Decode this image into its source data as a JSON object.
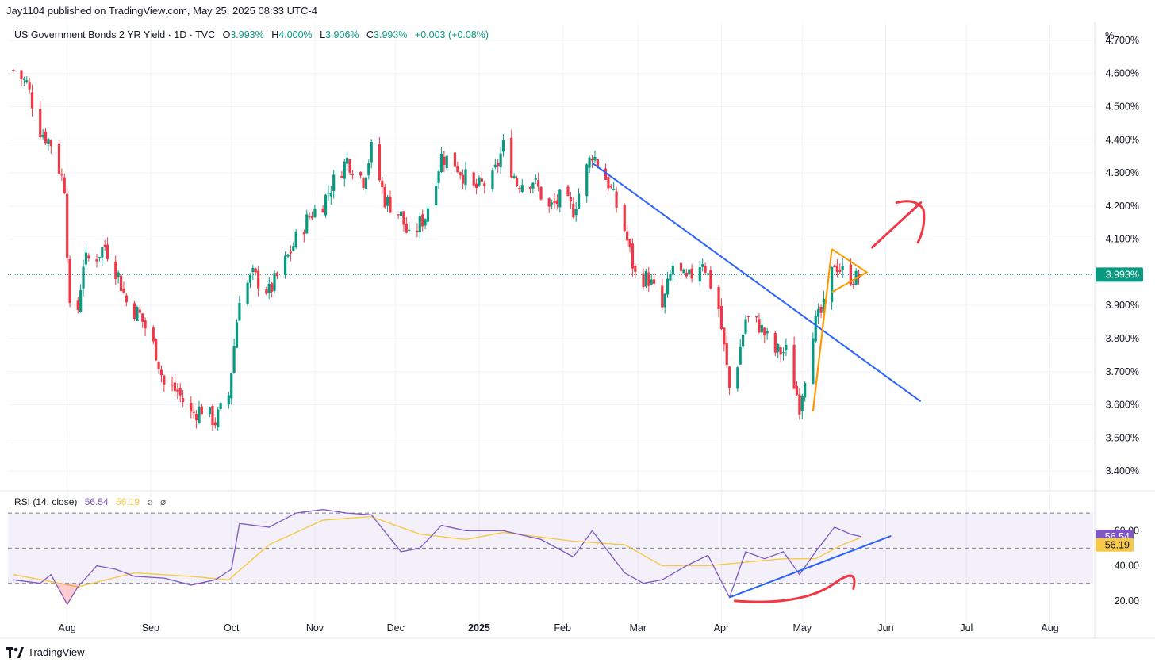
{
  "publisher": "Jay1104 published on TradingView.com, May 25, 2025 08:33 UTC-4",
  "legend": {
    "symbol": "US Government Bonds 2 YR Yield · 1D · TVC",
    "o_label": "O",
    "o_value": "3.993%",
    "h_label": "H",
    "h_value": "4.000%",
    "l_label": "L",
    "l_value": "3.906%",
    "c_label": "C",
    "c_value": "3.993%",
    "change": "+0.003 (+0.08%)"
  },
  "unit_label": "%",
  "rsi_legend": {
    "label": "RSI (14, close)",
    "rsi_value": "56.54",
    "ma_value": "56.19"
  },
  "footer": {
    "brand": "TradingView"
  },
  "colors": {
    "up": "#089981",
    "down": "#f23645",
    "rsi": "#7e57c2",
    "rsi_ma": "#f7c948",
    "trendline": "#2962ff",
    "pattern": "#ff9800",
    "annotation": "#f23645",
    "price_tag_bg": "#089981",
    "rsi_tag_bg": "#7e57c2",
    "ma_tag_bg": "#f7c948"
  },
  "chart_data": [
    {
      "type": "candlestick",
      "title": "US Government Bonds 2 YR Yield",
      "ylim": [
        3.35,
        4.75
      ],
      "y_ticks": [
        "4.700%",
        "4.600%",
        "4.500%",
        "4.400%",
        "4.300%",
        "4.200%",
        "4.100%",
        "3.900%",
        "3.800%",
        "3.700%",
        "3.600%",
        "3.500%",
        "3.400%"
      ],
      "y_tick_values": [
        4.7,
        4.6,
        4.5,
        4.4,
        4.3,
        4.2,
        4.1,
        3.9,
        3.8,
        3.7,
        3.6,
        3.5,
        3.4
      ],
      "last_price": 3.993,
      "last_price_label": "3.993%",
      "x_months": [
        "Aug",
        "Sep",
        "Oct",
        "Nov",
        "Dec",
        "2025",
        "Feb",
        "Mar",
        "Apr",
        "May",
        "Jun",
        "Jul",
        "Aug"
      ],
      "series": [
        {
          "date": "2024-07-12",
          "close": 4.61
        },
        {
          "date": "2024-07-17",
          "close": 4.57
        },
        {
          "date": "2024-07-22",
          "close": 4.43
        },
        {
          "date": "2024-07-26",
          "close": 4.39
        },
        {
          "date": "2024-07-31",
          "close": 4.26
        },
        {
          "date": "2024-08-02",
          "close": 3.88
        },
        {
          "date": "2024-08-05",
          "close": 3.89
        },
        {
          "date": "2024-08-07",
          "close": 4.03
        },
        {
          "date": "2024-08-12",
          "close": 4.05
        },
        {
          "date": "2024-08-15",
          "close": 4.08
        },
        {
          "date": "2024-08-20",
          "close": 3.99
        },
        {
          "date": "2024-08-23",
          "close": 3.91
        },
        {
          "date": "2024-08-28",
          "close": 3.87
        },
        {
          "date": "2024-09-03",
          "close": 3.76
        },
        {
          "date": "2024-09-06",
          "close": 3.66
        },
        {
          "date": "2024-09-11",
          "close": 3.64
        },
        {
          "date": "2024-09-16",
          "close": 3.57
        },
        {
          "date": "2024-09-20",
          "close": 3.59
        },
        {
          "date": "2024-09-25",
          "close": 3.55
        },
        {
          "date": "2024-09-30",
          "close": 3.63
        },
        {
          "date": "2024-10-04",
          "close": 3.93
        },
        {
          "date": "2024-10-09",
          "close": 3.99
        },
        {
          "date": "2024-10-15",
          "close": 3.94
        },
        {
          "date": "2024-10-21",
          "close": 4.03
        },
        {
          "date": "2024-10-25",
          "close": 4.1
        },
        {
          "date": "2024-10-30",
          "close": 4.17
        },
        {
          "date": "2024-11-04",
          "close": 4.21
        },
        {
          "date": "2024-11-07",
          "close": 4.26
        },
        {
          "date": "2024-11-13",
          "close": 4.34
        },
        {
          "date": "2024-11-19",
          "close": 4.28
        },
        {
          "date": "2024-11-22",
          "close": 4.37
        },
        {
          "date": "2024-11-27",
          "close": 4.22
        },
        {
          "date": "2024-12-03",
          "close": 4.17
        },
        {
          "date": "2024-12-06",
          "close": 4.1
        },
        {
          "date": "2024-12-12",
          "close": 4.17
        },
        {
          "date": "2024-12-18",
          "close": 4.35
        },
        {
          "date": "2024-12-23",
          "close": 4.33
        },
        {
          "date": "2024-12-30",
          "close": 4.25
        },
        {
          "date": "2025-01-06",
          "close": 4.28
        },
        {
          "date": "2025-01-10",
          "close": 4.38
        },
        {
          "date": "2025-01-15",
          "close": 4.27
        },
        {
          "date": "2025-01-21",
          "close": 4.28
        },
        {
          "date": "2025-01-27",
          "close": 4.19
        },
        {
          "date": "2025-01-31",
          "close": 4.22
        },
        {
          "date": "2025-02-05",
          "close": 4.19
        },
        {
          "date": "2025-02-12",
          "close": 4.36
        },
        {
          "date": "2025-02-18",
          "close": 4.27
        },
        {
          "date": "2025-02-24",
          "close": 4.13
        },
        {
          "date": "2025-02-28",
          "close": 3.99
        },
        {
          "date": "2025-03-05",
          "close": 3.98
        },
        {
          "date": "2025-03-10",
          "close": 3.89
        },
        {
          "date": "2025-03-14",
          "close": 4.02
        },
        {
          "date": "2025-03-19",
          "close": 3.97
        },
        {
          "date": "2025-03-25",
          "close": 4.04
        },
        {
          "date": "2025-03-31",
          "close": 3.89
        },
        {
          "date": "2025-04-04",
          "close": 3.65
        },
        {
          "date": "2025-04-07",
          "close": 3.73
        },
        {
          "date": "2025-04-10",
          "close": 3.86
        },
        {
          "date": "2025-04-15",
          "close": 3.84
        },
        {
          "date": "2025-04-21",
          "close": 3.76
        },
        {
          "date": "2025-04-25",
          "close": 3.76
        },
        {
          "date": "2025-04-30",
          "close": 3.6
        },
        {
          "date": "2025-05-05",
          "close": 3.83
        },
        {
          "date": "2025-05-09",
          "close": 3.89
        },
        {
          "date": "2025-05-13",
          "close": 4.03
        },
        {
          "date": "2025-05-16",
          "close": 4.0
        },
        {
          "date": "2025-05-21",
          "close": 3.98
        },
        {
          "date": "2025-05-23",
          "close": 3.993
        }
      ]
    },
    {
      "type": "line",
      "title": "RSI (14, close)",
      "ylim": [
        10,
        80
      ],
      "y_ticks": [
        "60.00",
        "40.00",
        "20.00"
      ],
      "y_tick_values": [
        60,
        40,
        20
      ],
      "rsi_last": 56.54,
      "ma_last": 56.19,
      "rsi_series": [
        [
          "2024-07-12",
          32
        ],
        [
          "2024-07-22",
          30
        ],
        [
          "2024-07-26",
          35
        ],
        [
          "2024-08-01",
          18
        ],
        [
          "2024-08-05",
          28
        ],
        [
          "2024-08-12",
          40
        ],
        [
          "2024-08-19",
          38
        ],
        [
          "2024-08-26",
          34
        ],
        [
          "2024-09-06",
          33
        ],
        [
          "2024-09-16",
          29
        ],
        [
          "2024-09-25",
          32
        ],
        [
          "2024-10-01",
          38
        ],
        [
          "2024-10-04",
          64
        ],
        [
          "2024-10-15",
          62
        ],
        [
          "2024-10-25",
          70
        ],
        [
          "2024-11-04",
          72
        ],
        [
          "2024-11-13",
          70
        ],
        [
          "2024-11-22",
          69
        ],
        [
          "2024-12-03",
          48
        ],
        [
          "2024-12-10",
          50
        ],
        [
          "2024-12-18",
          63
        ],
        [
          "2024-12-27",
          60
        ],
        [
          "2025-01-10",
          60
        ],
        [
          "2025-01-24",
          55
        ],
        [
          "2025-02-05",
          45
        ],
        [
          "2025-02-12",
          60
        ],
        [
          "2025-02-24",
          36
        ],
        [
          "2025-03-03",
          30
        ],
        [
          "2025-03-10",
          32
        ],
        [
          "2025-03-19",
          40
        ],
        [
          "2025-03-27",
          46
        ],
        [
          "2025-04-04",
          22
        ],
        [
          "2025-04-10",
          48
        ],
        [
          "2025-04-17",
          44
        ],
        [
          "2025-04-24",
          48
        ],
        [
          "2025-04-30",
          35
        ],
        [
          "2025-05-06",
          48
        ],
        [
          "2025-05-13",
          62
        ],
        [
          "2025-05-19",
          58
        ],
        [
          "2025-05-23",
          56.54
        ]
      ],
      "ma_series": [
        [
          "2024-07-12",
          35
        ],
        [
          "2024-08-05",
          28
        ],
        [
          "2024-08-26",
          36
        ],
        [
          "2024-09-16",
          34
        ],
        [
          "2024-09-30",
          32
        ],
        [
          "2024-10-15",
          52
        ],
        [
          "2024-11-04",
          66
        ],
        [
          "2024-11-22",
          68
        ],
        [
          "2024-12-10",
          58
        ],
        [
          "2024-12-27",
          55
        ],
        [
          "2025-01-10",
          59
        ],
        [
          "2025-02-05",
          54
        ],
        [
          "2025-02-24",
          52
        ],
        [
          "2025-03-10",
          40
        ],
        [
          "2025-03-27",
          40
        ],
        [
          "2025-04-10",
          42
        ],
        [
          "2025-04-24",
          44
        ],
        [
          "2025-05-06",
          44
        ],
        [
          "2025-05-16",
          52
        ],
        [
          "2025-05-23",
          56.19
        ]
      ]
    }
  ]
}
